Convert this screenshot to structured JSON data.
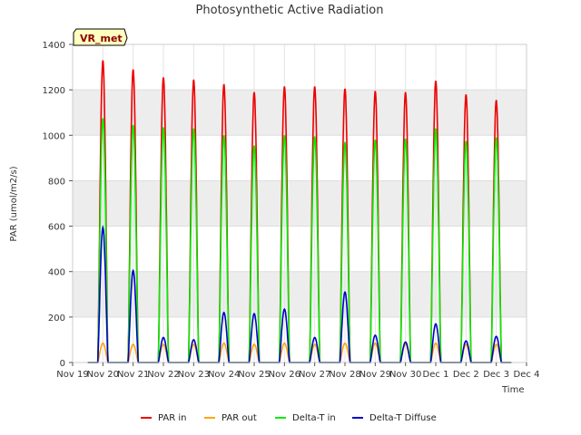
{
  "chart_data": {
    "type": "line",
    "title": "Photosynthetic Active Radiation",
    "xlabel": "Time",
    "ylabel": "PAR (umol/m2/s)",
    "badge": "VR_met",
    "ylim": [
      0,
      1400
    ],
    "yticks": [
      0,
      200,
      400,
      600,
      800,
      1000,
      1200,
      1400
    ],
    "xlim": [
      0,
      15
    ],
    "xticks": [
      {
        "v": 0,
        "label": "Nov 19"
      },
      {
        "v": 1,
        "label": "Nov 20"
      },
      {
        "v": 2,
        "label": "Nov 21"
      },
      {
        "v": 3,
        "label": "Nov 22"
      },
      {
        "v": 4,
        "label": "Nov 23"
      },
      {
        "v": 5,
        "label": "Nov 24"
      },
      {
        "v": 6,
        "label": "Nov 25"
      },
      {
        "v": 7,
        "label": "Nov 26"
      },
      {
        "v": 8,
        "label": "Nov 27"
      },
      {
        "v": 9,
        "label": "Nov 28"
      },
      {
        "v": 10,
        "label": "Nov 29"
      },
      {
        "v": 11,
        "label": "Nov 30"
      },
      {
        "v": 12,
        "label": "Dec 1"
      },
      {
        "v": 13,
        "label": "Dec 2"
      },
      {
        "v": 14,
        "label": "Dec 3"
      },
      {
        "v": 15,
        "label": "Dec 4"
      }
    ],
    "grid": true,
    "legend_position": "bottom",
    "background_bands": "alternating gray/white horizontal bands",
    "series": [
      {
        "name": "PAR in",
        "color": "#ee0000",
        "day_peaks": [
          1330,
          1290,
          1255,
          1245,
          1225,
          1190,
          1215,
          1215,
          1205,
          1195,
          1190,
          1240,
          1180,
          1155
        ]
      },
      {
        "name": "PAR out",
        "color": "#ffa500",
        "day_peaks": [
          85,
          80,
          80,
          80,
          85,
          80,
          85,
          80,
          85,
          85,
          80,
          85,
          80,
          80
        ]
      },
      {
        "name": "Delta-T in",
        "color": "#00ee00",
        "day_peaks": [
          1075,
          1045,
          1035,
          1030,
          1000,
          955,
          1000,
          995,
          970,
          980,
          985,
          1030,
          975,
          990
        ]
      },
      {
        "name": "Delta-T Diffuse",
        "color": "#0000cc",
        "day_peaks": [
          595,
          405,
          110,
          100,
          220,
          215,
          235,
          110,
          310,
          120,
          90,
          170,
          95,
          115
        ]
      }
    ]
  }
}
